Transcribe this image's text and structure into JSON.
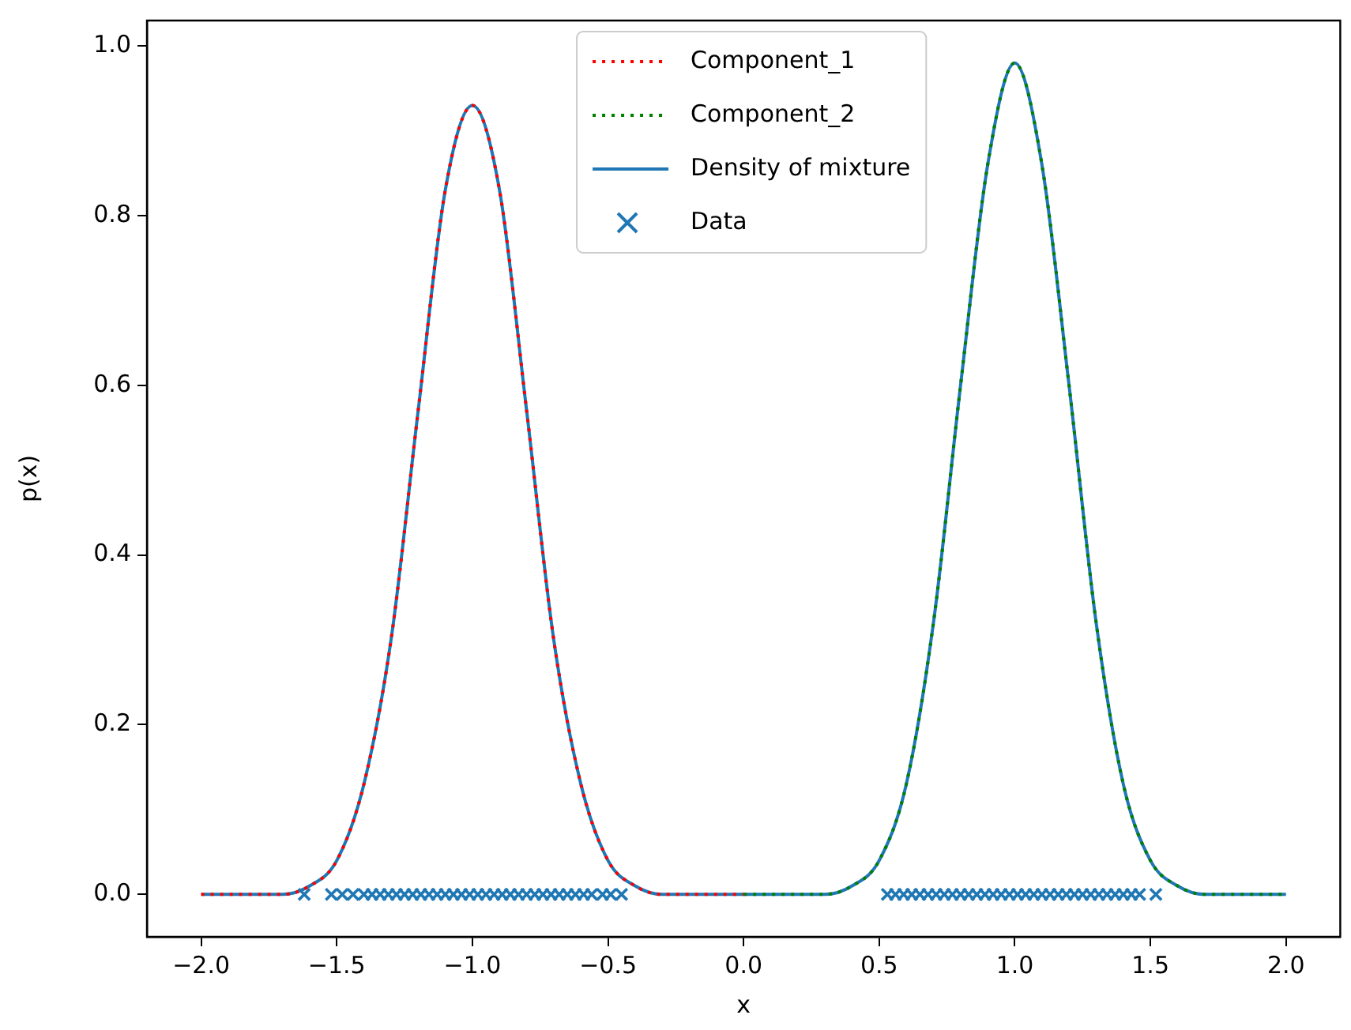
{
  "chart_data": {
    "type": "line",
    "xlabel": "x",
    "ylabel": "p(x)",
    "xlim": [
      -2.2,
      2.2
    ],
    "ylim": [
      -0.05,
      1.03
    ],
    "xticks": [
      {
        "value": -2,
        "label": "−2.0"
      },
      {
        "value": -1.5,
        "label": "−1.5"
      },
      {
        "value": -1,
        "label": "−1.0"
      },
      {
        "value": -0.5,
        "label": "−0.5"
      },
      {
        "value": 0,
        "label": "0.0"
      },
      {
        "value": 0.5,
        "label": "0.5"
      },
      {
        "value": 1,
        "label": "1.0"
      },
      {
        "value": 1.5,
        "label": "1.5"
      },
      {
        "value": 2,
        "label": "2.0"
      }
    ],
    "yticks": [
      {
        "value": 0,
        "label": "0.0"
      },
      {
        "value": 0.2,
        "label": "0.2"
      },
      {
        "value": 0.4,
        "label": "0.4"
      },
      {
        "value": 0.6,
        "label": "0.6"
      },
      {
        "value": 0.8,
        "label": "0.8"
      },
      {
        "value": 1,
        "label": "1.0"
      }
    ],
    "grid": false,
    "legend": "top",
    "x": [
      -2.0,
      -1.9,
      -1.8,
      -1.7,
      -1.6,
      -1.5,
      -1.4,
      -1.3,
      -1.2,
      -1.1,
      -1.0,
      -0.9,
      -0.8,
      -0.7,
      -0.6,
      -0.5,
      -0.4,
      -0.3,
      -0.2,
      -0.1,
      0.0,
      0.1,
      0.2,
      0.3,
      0.4,
      0.5,
      0.6,
      0.7,
      0.8,
      0.9,
      1.0,
      1.1,
      1.2,
      1.3,
      1.4,
      1.5,
      1.6,
      1.7,
      1.8,
      1.9,
      2.0
    ],
    "series": [
      {
        "name": "Component_1",
        "color": "#ff0000",
        "line_style": "dotted",
        "marker": "none",
        "values": [
          0,
          0,
          0,
          0,
          0.01,
          0.04,
          0.13,
          0.3,
          0.57,
          0.83,
          0.93,
          0.83,
          0.57,
          0.3,
          0.13,
          0.04,
          0.01,
          0,
          0,
          0,
          0,
          null,
          null,
          null,
          null,
          null,
          null,
          null,
          null,
          null,
          null,
          null,
          null,
          null,
          null,
          null,
          null,
          null,
          null,
          null,
          null
        ]
      },
      {
        "name": "Component_2",
        "color": "#008000",
        "line_style": "dotted",
        "marker": "none",
        "values": [
          null,
          null,
          null,
          null,
          null,
          null,
          null,
          null,
          null,
          null,
          null,
          null,
          null,
          null,
          null,
          null,
          null,
          null,
          null,
          null,
          0,
          0,
          0,
          0,
          0.01,
          0.04,
          0.13,
          0.32,
          0.6,
          0.86,
          0.98,
          0.86,
          0.6,
          0.32,
          0.13,
          0.04,
          0.01,
          0,
          0,
          0,
          0
        ]
      },
      {
        "name": "Density of mixture",
        "color": "#1f77b4",
        "line_style": "solid",
        "marker": "none",
        "values": [
          0,
          0,
          0,
          0,
          0.01,
          0.04,
          0.13,
          0.3,
          0.57,
          0.83,
          0.93,
          0.83,
          0.57,
          0.3,
          0.13,
          0.04,
          0.01,
          0,
          0,
          0,
          0,
          0,
          0,
          0,
          0.01,
          0.04,
          0.13,
          0.32,
          0.6,
          0.86,
          0.98,
          0.86,
          0.6,
          0.32,
          0.13,
          0.04,
          0.01,
          0,
          0,
          0,
          0
        ]
      },
      {
        "name": "Data",
        "type": "scatter",
        "color": "#1f77b4",
        "marker": "cross",
        "x": [
          -1.62,
          -1.52,
          -1.48,
          -1.44,
          -1.4,
          -1.37,
          -1.34,
          -1.31,
          -1.28,
          -1.25,
          -1.22,
          -1.19,
          -1.16,
          -1.13,
          -1.1,
          -1.07,
          -1.04,
          -1.01,
          -0.98,
          -0.95,
          -0.92,
          -0.89,
          -0.86,
          -0.83,
          -0.8,
          -0.77,
          -0.74,
          -0.71,
          -0.68,
          -0.65,
          -0.62,
          -0.59,
          -0.56,
          -0.52,
          -0.49,
          -0.45,
          0.53,
          0.56,
          0.59,
          0.62,
          0.65,
          0.68,
          0.71,
          0.74,
          0.77,
          0.8,
          0.83,
          0.86,
          0.89,
          0.92,
          0.95,
          0.98,
          1.01,
          1.04,
          1.07,
          1.1,
          1.13,
          1.16,
          1.19,
          1.22,
          1.25,
          1.28,
          1.31,
          1.34,
          1.37,
          1.4,
          1.43,
          1.46,
          1.52
        ],
        "values": [
          0,
          0,
          0,
          0,
          0,
          0,
          0,
          0,
          0,
          0,
          0,
          0,
          0,
          0,
          0,
          0,
          0,
          0,
          0,
          0,
          0,
          0,
          0,
          0,
          0,
          0,
          0,
          0,
          0,
          0,
          0,
          0,
          0,
          0,
          0,
          0,
          0,
          0,
          0,
          0,
          0,
          0,
          0,
          0,
          0,
          0,
          0,
          0,
          0,
          0,
          0,
          0,
          0,
          0,
          0,
          0,
          0,
          0,
          0,
          0,
          0,
          0,
          0,
          0,
          0,
          0,
          0,
          0,
          0
        ]
      }
    ]
  }
}
